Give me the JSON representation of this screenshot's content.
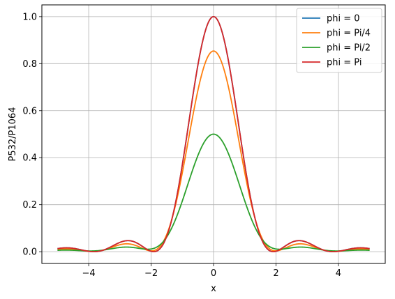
{
  "chart_data": {
    "type": "line",
    "xlabel": "x",
    "ylabel": "P532/P1064",
    "xlim": [
      -5.5,
      5.5
    ],
    "ylim": [
      -0.05,
      1.05
    ],
    "xticks": [
      -4,
      -2,
      0,
      2,
      4
    ],
    "xtick_labels": [
      "−4",
      "−2",
      "0",
      "2",
      "4"
    ],
    "yticks": [
      0.0,
      0.2,
      0.4,
      0.6,
      0.8,
      1.0
    ],
    "ytick_labels": [
      "0.0",
      "0.2",
      "0.4",
      "0.6",
      "0.8",
      "1.0"
    ],
    "grid": true,
    "legend_position": "top-right",
    "x_range": [
      -5,
      5
    ],
    "series": [
      {
        "name": "phi = 0",
        "phi": 0,
        "color": "#1f77b4"
      },
      {
        "name": "phi = Pi/4",
        "phi": 0.7853981634,
        "color": "#ff7f0e"
      },
      {
        "name": "phi = Pi/2",
        "phi": 1.5707963268,
        "color": "#2ca02c"
      },
      {
        "name": "phi = Pi",
        "phi": 3.1415926536,
        "color": "#d62728"
      }
    ]
  }
}
